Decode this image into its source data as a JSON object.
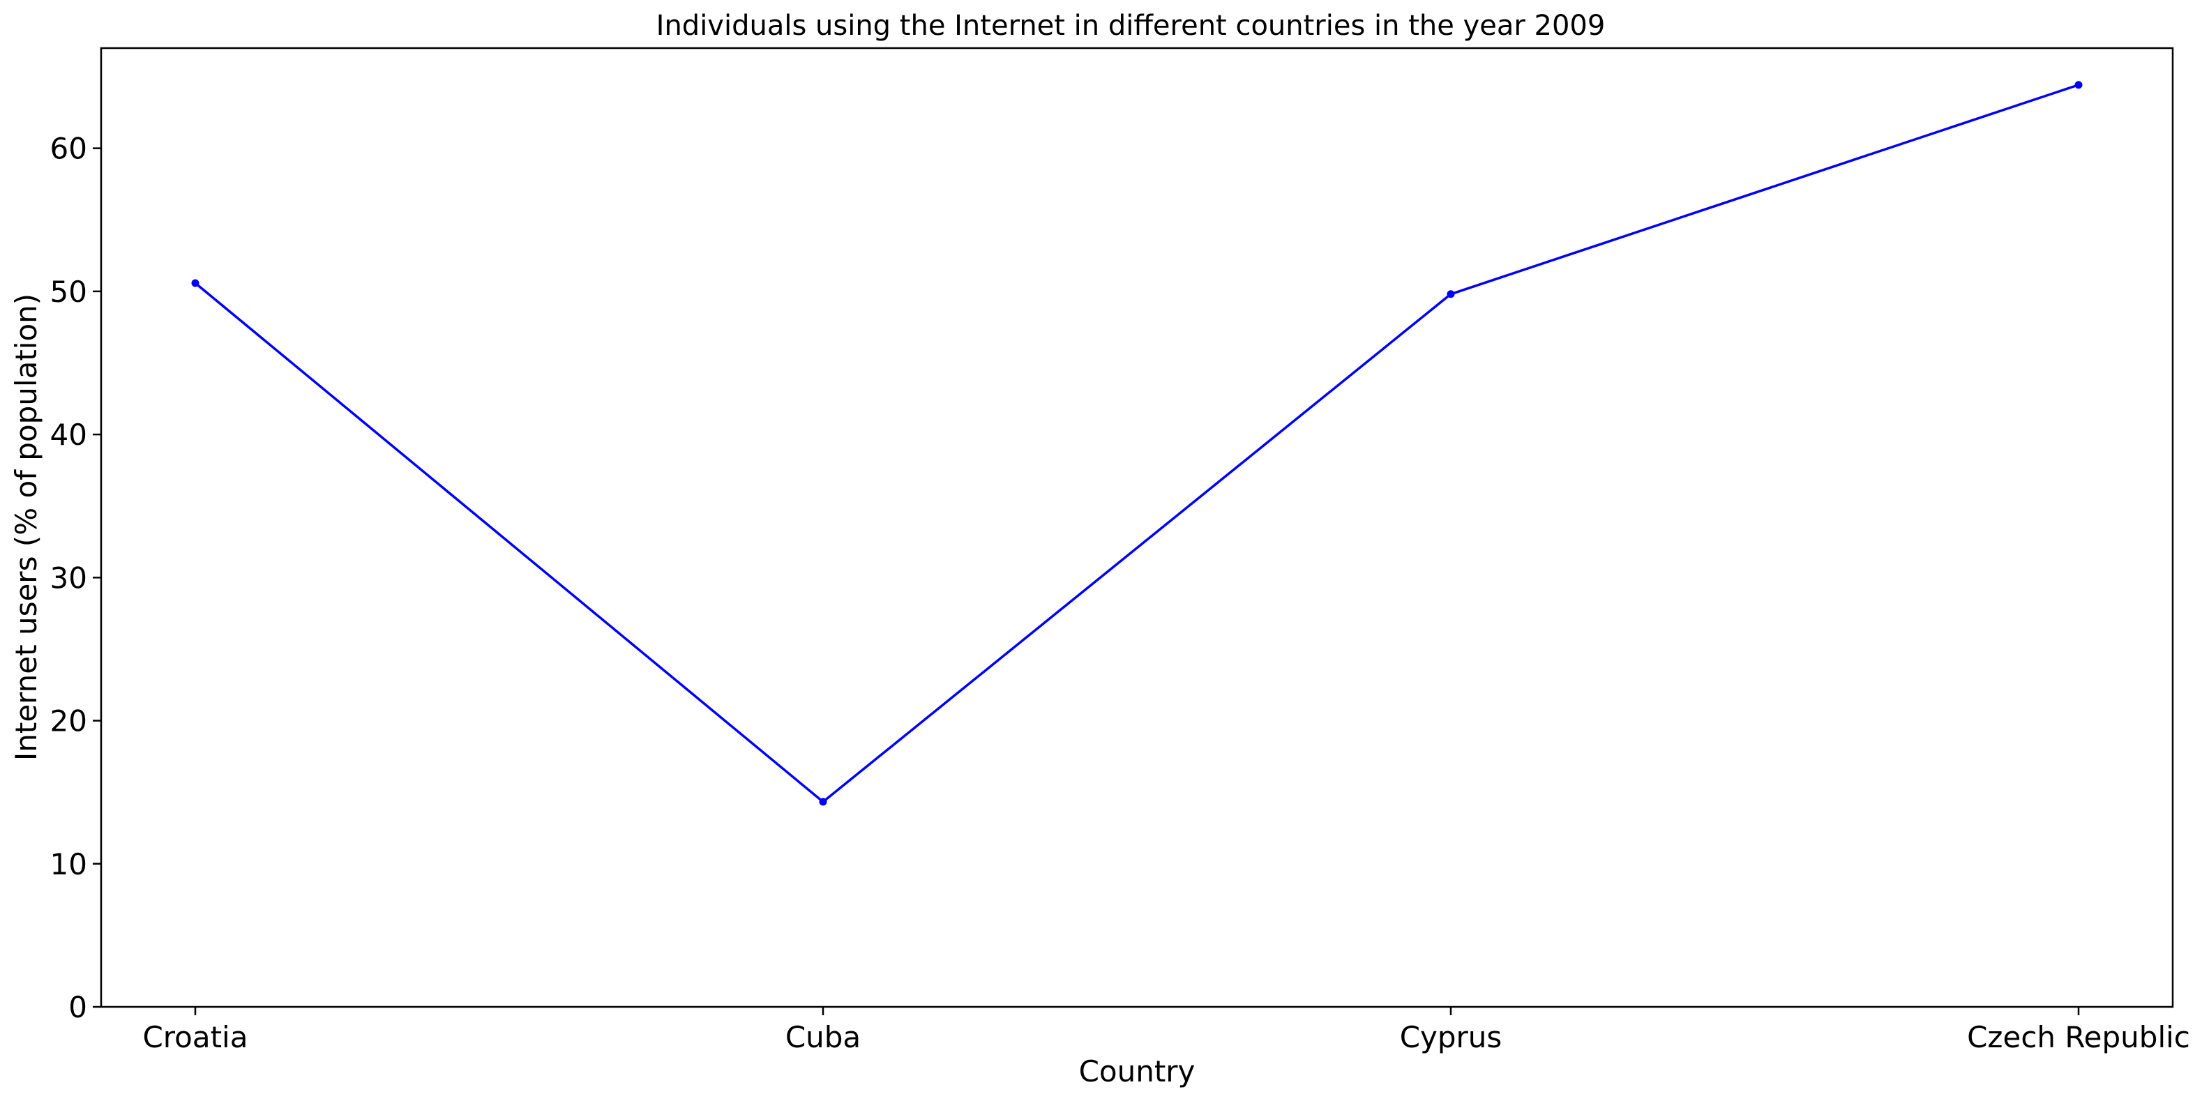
{
  "chart_data": {
    "type": "line",
    "title": "Individuals using the Internet in different countries in the year 2009",
    "xlabel": "Country",
    "ylabel": "Internet users (% of population)",
    "categories": [
      "Croatia",
      "Cuba",
      "Cyprus",
      "Czech Republic"
    ],
    "series": [
      {
        "values": [
          50.58,
          14.33,
          49.81,
          64.43
        ],
        "color": "#0000ff",
        "marker": "dot"
      }
    ],
    "ylim": [
      0,
      67
    ],
    "yticks": [
      0,
      10,
      20,
      30,
      40,
      50,
      60
    ],
    "grid": false,
    "legend": "none"
  }
}
